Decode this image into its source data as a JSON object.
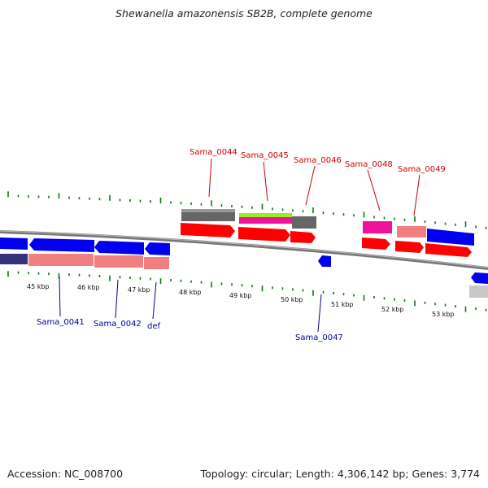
{
  "title": "Shewanella amazonensis SB2B, complete genome",
  "accession": "Accession: NC_008700",
  "summary": "Topology: circular; Length: 4,306,142 bp; Genes: 3,774",
  "colors": {
    "blue": "#0000ee",
    "red": "#ff0000",
    "navy": "#33337a",
    "salmon": "#f08080",
    "grey": "#666666",
    "lightgrey": "#c8c8c8",
    "magenta": "#ee1199",
    "lime": "#99ee22",
    "tick": "#117711",
    "backbone": "#888888",
    "label_red": "#cc0000",
    "label_blue": "#000099"
  },
  "kbp_labels": [
    "45 kbp",
    "46 kbp",
    "47 kbp",
    "48 kbp",
    "49 kbp",
    "50 kbp",
    "51 kbp",
    "52 kbp",
    "53 kbp"
  ],
  "gene_labels_top": [
    "Sama_0044",
    "Sama_0045",
    "Sama_0046",
    "Sama_0048",
    "Sama_0049"
  ],
  "gene_labels_bottom": [
    "Sama_0041",
    "Sama_0042",
    "def",
    "Sama_0047"
  ]
}
